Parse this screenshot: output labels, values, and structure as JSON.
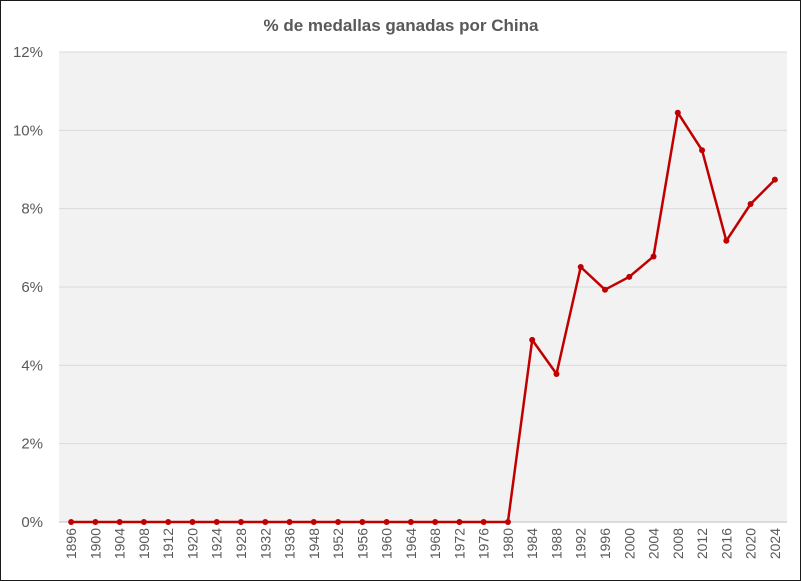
{
  "chart_data": {
    "type": "line",
    "title": "% de medallas ganadas por China",
    "xlabel": "",
    "ylabel": "",
    "ylim": [
      0,
      12
    ],
    "y_tick_labels": [
      "0%",
      "2%",
      "4%",
      "6%",
      "8%",
      "10%",
      "12%"
    ],
    "grid": true,
    "legend": "none",
    "categories": [
      "1896",
      "1900",
      "1904",
      "1908",
      "1912",
      "1920",
      "1924",
      "1928",
      "1932",
      "1936",
      "1948",
      "1952",
      "1956",
      "1960",
      "1964",
      "1968",
      "1972",
      "1976",
      "1980",
      "1984",
      "1988",
      "1992",
      "1996",
      "2000",
      "2004",
      "2008",
      "2012",
      "2016",
      "2020",
      "2024"
    ],
    "series": [
      {
        "color": "#c00000",
        "values": [
          0,
          0,
          0,
          0,
          0,
          0,
          0,
          0,
          0,
          0,
          0,
          0,
          0,
          0,
          0,
          0,
          0,
          0,
          0,
          4.65,
          3.78,
          6.51,
          5.93,
          6.26,
          6.78,
          10.45,
          9.49,
          7.18,
          8.12,
          8.74
        ]
      }
    ],
    "colors": {
      "plot_background": "#f2f2f2",
      "gridline": "#d9d9d9",
      "text": "#595959"
    }
  }
}
